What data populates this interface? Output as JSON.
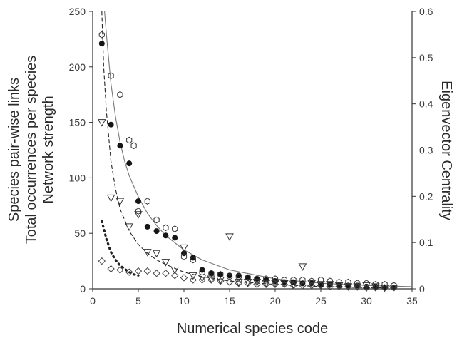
{
  "chart_data": {
    "type": "scatter",
    "xlabel": "Numerical species code",
    "ylabel_lines": [
      "Species pair-wise links",
      "Total occurrences per species",
      "Network strength"
    ],
    "y2label": "Eigenvector Centrality",
    "xlim": [
      0,
      35
    ],
    "ylim": [
      0,
      250
    ],
    "y2lim": [
      0,
      0.6
    ],
    "x_ticks": [
      0,
      5,
      10,
      15,
      20,
      25,
      30,
      35
    ],
    "y_ticks": [
      0,
      50,
      100,
      150,
      200,
      250
    ],
    "y2_ticks": [
      0,
      0.1,
      0.2,
      0.3,
      0.4,
      0.5,
      0.6
    ],
    "grid": false,
    "series": [
      {
        "marker": "filled-circle",
        "x": [
          1,
          2,
          3,
          4,
          5,
          6,
          7,
          8,
          9,
          10,
          11,
          12,
          13,
          14,
          15,
          16,
          17,
          18,
          19,
          20,
          21,
          22,
          23,
          24,
          25,
          26,
          27,
          28,
          29,
          30,
          31,
          32,
          33
        ],
        "y": [
          221,
          148,
          129,
          113,
          79,
          56,
          52,
          48,
          46,
          32,
          28,
          17,
          14,
          13,
          12,
          12,
          10,
          9,
          8,
          7,
          6,
          6,
          5,
          5,
          4,
          4,
          3,
          3,
          3,
          2,
          2,
          1,
          1
        ]
      },
      {
        "marker": "open-hexagon",
        "x": [
          1,
          2,
          3,
          4,
          4.5,
          5,
          6,
          7,
          8,
          9,
          10,
          11,
          12,
          13,
          14,
          15,
          16,
          17,
          18,
          19,
          20,
          21,
          22,
          23,
          24,
          25,
          26,
          27,
          28,
          29,
          30,
          31,
          32,
          33
        ],
        "y": [
          229,
          192,
          175,
          134,
          129,
          70,
          79,
          62,
          55,
          54,
          29,
          26,
          15,
          14,
          13,
          11,
          11,
          10,
          9,
          9,
          9,
          8,
          8,
          8,
          7,
          8,
          7,
          6,
          6,
          5,
          5,
          4,
          4,
          3
        ]
      },
      {
        "marker": "open-triangle-down",
        "x": [
          1,
          2,
          3,
          4,
          5,
          6,
          7,
          8,
          9,
          10,
          11,
          12,
          13,
          14,
          15,
          16,
          17,
          18,
          19,
          20,
          21,
          22,
          23,
          24,
          25,
          26,
          27,
          28,
          29,
          30,
          31,
          32,
          33
        ],
        "y": [
          150,
          82,
          79,
          56,
          67,
          33,
          32,
          24,
          17,
          37,
          12,
          10,
          9,
          8,
          47,
          6,
          6,
          6,
          5,
          5,
          5,
          4,
          20,
          5,
          4,
          4,
          3,
          2,
          2,
          3,
          2,
          1,
          1
        ]
      },
      {
        "marker": "open-diamond",
        "x": [
          1,
          2,
          3,
          4,
          5,
          6,
          7,
          8,
          9,
          10,
          11,
          12,
          13,
          14,
          15,
          16,
          17,
          18,
          19,
          20,
          21,
          22,
          23,
          24,
          25,
          26,
          27,
          28,
          29,
          30,
          31,
          32,
          33
        ],
        "y": [
          25,
          18,
          17,
          15,
          16,
          16,
          14,
          14,
          12,
          10,
          8,
          8,
          8,
          7,
          6,
          5,
          5,
          4,
          4,
          4,
          4,
          3,
          3,
          3,
          3,
          2,
          2,
          2,
          2,
          1,
          1,
          1,
          1
        ]
      }
    ],
    "fit_lines": [
      {
        "style": "solid",
        "x": [
          1.3,
          1.6,
          2,
          2.5,
          3,
          3.5,
          4,
          5,
          6,
          7,
          8,
          10,
          12,
          15,
          20,
          25,
          30,
          35
        ],
        "y": [
          250,
          220,
          185,
          155,
          132,
          115,
          102,
          83,
          68,
          57,
          48,
          35,
          26,
          17,
          9,
          5,
          3,
          2
        ]
      },
      {
        "style": "dashed",
        "x": [
          1.0,
          1.2,
          1.5,
          2,
          2.5,
          3,
          4,
          5,
          6,
          7,
          8,
          10,
          12,
          15,
          20,
          25,
          30,
          33
        ],
        "y": [
          250,
          200,
          160,
          115,
          90,
          72,
          52,
          40,
          32,
          26,
          22,
          15,
          11,
          7,
          4,
          2,
          1,
          1
        ]
      },
      {
        "style": "dotted",
        "x": [
          1,
          1.5,
          2,
          2.5,
          3,
          3.5,
          4,
          4.5,
          5
        ],
        "y": [
          61,
          45,
          33,
          26,
          21,
          18,
          15,
          13,
          12
        ]
      }
    ]
  }
}
